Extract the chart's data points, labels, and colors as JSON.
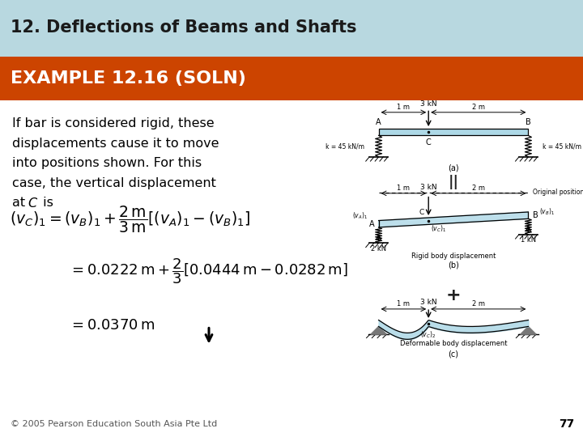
{
  "title_top": "12. Deflections of Beams and Shafts",
  "title_top_bg": "#b8d8e0",
  "title_top_color": "#1a1a1a",
  "title_example": "EXAMPLE 12.16 (SOLN)",
  "title_example_bg": "#cc4400",
  "title_example_color": "#ffffff",
  "body_bg": "#ffffff",
  "body_text_lines": [
    "If bar is considered rigid, these",
    "displacements cause it to move",
    "into positions shown. For this",
    "case, the vertical displacement",
    "at C is"
  ],
  "footer_text": "© 2005 Pearson Education South Asia Pte Ltd",
  "footer_page": "77",
  "text_color": "#000000",
  "footer_color": "#555555"
}
